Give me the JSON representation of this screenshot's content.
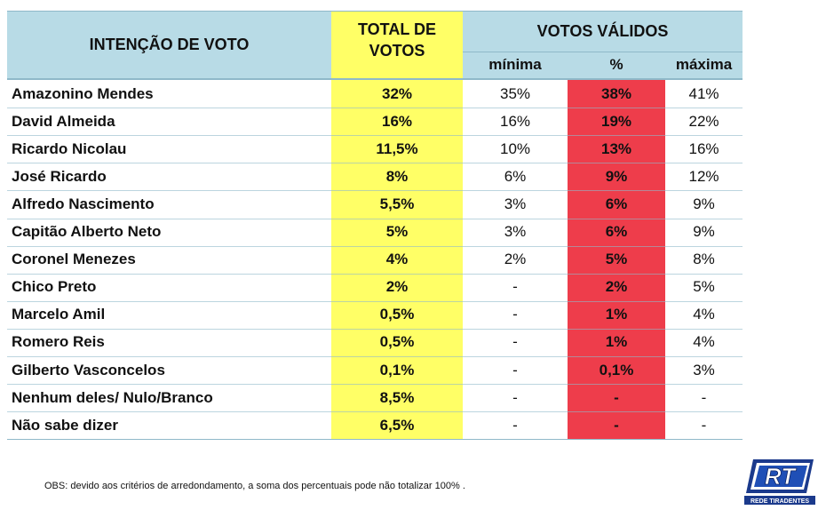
{
  "header": {
    "col_name": "INTENÇÃO DE VOTO",
    "col_total_line1": "TOTAL DE",
    "col_total_line2": "VOTOS",
    "group_valid": "VOTOS VÁLIDOS",
    "sub_min": "mínima",
    "sub_pct": "%",
    "sub_max": "máxima"
  },
  "chart_data": {
    "type": "table",
    "columns": [
      "INTENÇÃO DE VOTO",
      "TOTAL DE VOTOS",
      "mínima",
      "%",
      "máxima"
    ],
    "rows": [
      {
        "name": "Amazonino Mendes",
        "total": "32%",
        "min": "35%",
        "pct": "38%",
        "max": "41%"
      },
      {
        "name": "David Almeida",
        "total": "16%",
        "min": "16%",
        "pct": "19%",
        "max": "22%"
      },
      {
        "name": "Ricardo Nicolau",
        "total": "11,5%",
        "min": "10%",
        "pct": "13%",
        "max": "16%"
      },
      {
        "name": "José Ricardo",
        "total": "8%",
        "min": "6%",
        "pct": "9%",
        "max": "12%"
      },
      {
        "name": "Alfredo Nascimento",
        "total": "5,5%",
        "min": "3%",
        "pct": "6%",
        "max": "9%"
      },
      {
        "name": "Capitão Alberto Neto",
        "total": "5%",
        "min": "3%",
        "pct": "6%",
        "max": "9%"
      },
      {
        "name": "Coronel Menezes",
        "total": "4%",
        "min": "2%",
        "pct": "5%",
        "max": "8%"
      },
      {
        "name": "Chico Preto",
        "total": "2%",
        "min": "-",
        "pct": "2%",
        "max": "5%"
      },
      {
        "name": "Marcelo Amil",
        "total": "0,5%",
        "min": "-",
        "pct": "1%",
        "max": "4%"
      },
      {
        "name": "Romero Reis",
        "total": "0,5%",
        "min": "-",
        "pct": "1%",
        "max": "4%"
      },
      {
        "name": "Gilberto Vasconcelos",
        "total": "0,1%",
        "min": "-",
        "pct": "0,1%",
        "max": "3%"
      },
      {
        "name": "Nenhum deles/ Nulo/Branco",
        "total": "8,5%",
        "min": "-",
        "pct": "-",
        "max": "-"
      },
      {
        "name": "Não sabe dizer",
        "total": "6,5%",
        "min": "-",
        "pct": "-",
        "max": "-"
      }
    ]
  },
  "colors": {
    "header_bg": "#b8dbe6",
    "total_col": "#ffff66",
    "pct_col": "#ee3d4b",
    "rule": "#8fb9c9"
  },
  "footnote": "OBS: devido aos critérios de arredondamento, a soma dos percentuais pode não totalizar 100% .",
  "logo": {
    "text": "RT",
    "caption": "REDE TIRADENTES"
  }
}
